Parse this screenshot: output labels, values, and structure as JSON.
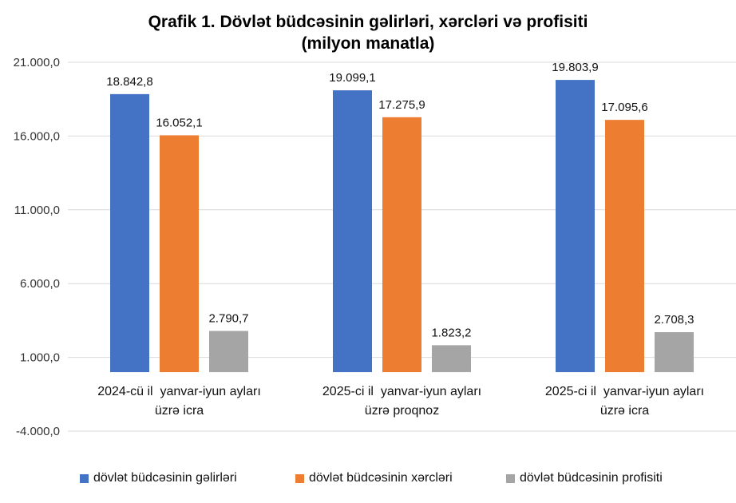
{
  "chart_data": {
    "type": "bar",
    "title_line1": "Qrafik 1. Dövlət büdcəsinin gəlirləri, xərcləri və profisiti",
    "title_line2": "(milyon manatla)",
    "categories": [
      [
        "2024-cü il  yanvar-iyun ayları",
        "üzrə icra"
      ],
      [
        "2025-ci il  yanvar-iyun ayları",
        "üzrə proqnoz"
      ],
      [
        "2025-ci il  yanvar-iyun ayları",
        "üzrə icra"
      ]
    ],
    "series": [
      {
        "name": "dövlət büdcəsinin gəlirləri",
        "color": "#4472C4",
        "values": [
          18842.8,
          19099.1,
          19803.9
        ],
        "labels": [
          "18.842,8",
          "19.099,1",
          "19.803,9"
        ]
      },
      {
        "name": "dövlət büdcəsinin xərcləri",
        "color": "#ED7D31",
        "values": [
          16052.1,
          17275.9,
          17095.6
        ],
        "labels": [
          "16.052,1",
          "17.275,9",
          "17.095,6"
        ]
      },
      {
        "name": "dövlət büdcəsinin profisiti",
        "color": "#A5A5A5",
        "values": [
          2790.7,
          1823.2,
          2708.3
        ],
        "labels": [
          "2.790,7",
          "1.823,2",
          "2.708,3"
        ]
      }
    ],
    "yticks": [
      21000,
      16000,
      11000,
      6000,
      1000,
      -4000
    ],
    "ytick_labels": [
      "21.000,0",
      "16.000,0",
      "11.000,0",
      "6.000,0",
      "1.000,0",
      "-4.000,0"
    ],
    "ylim": [
      -4000,
      21000
    ],
    "baseline": 0,
    "grid": true,
    "legend_position": "bottom"
  }
}
